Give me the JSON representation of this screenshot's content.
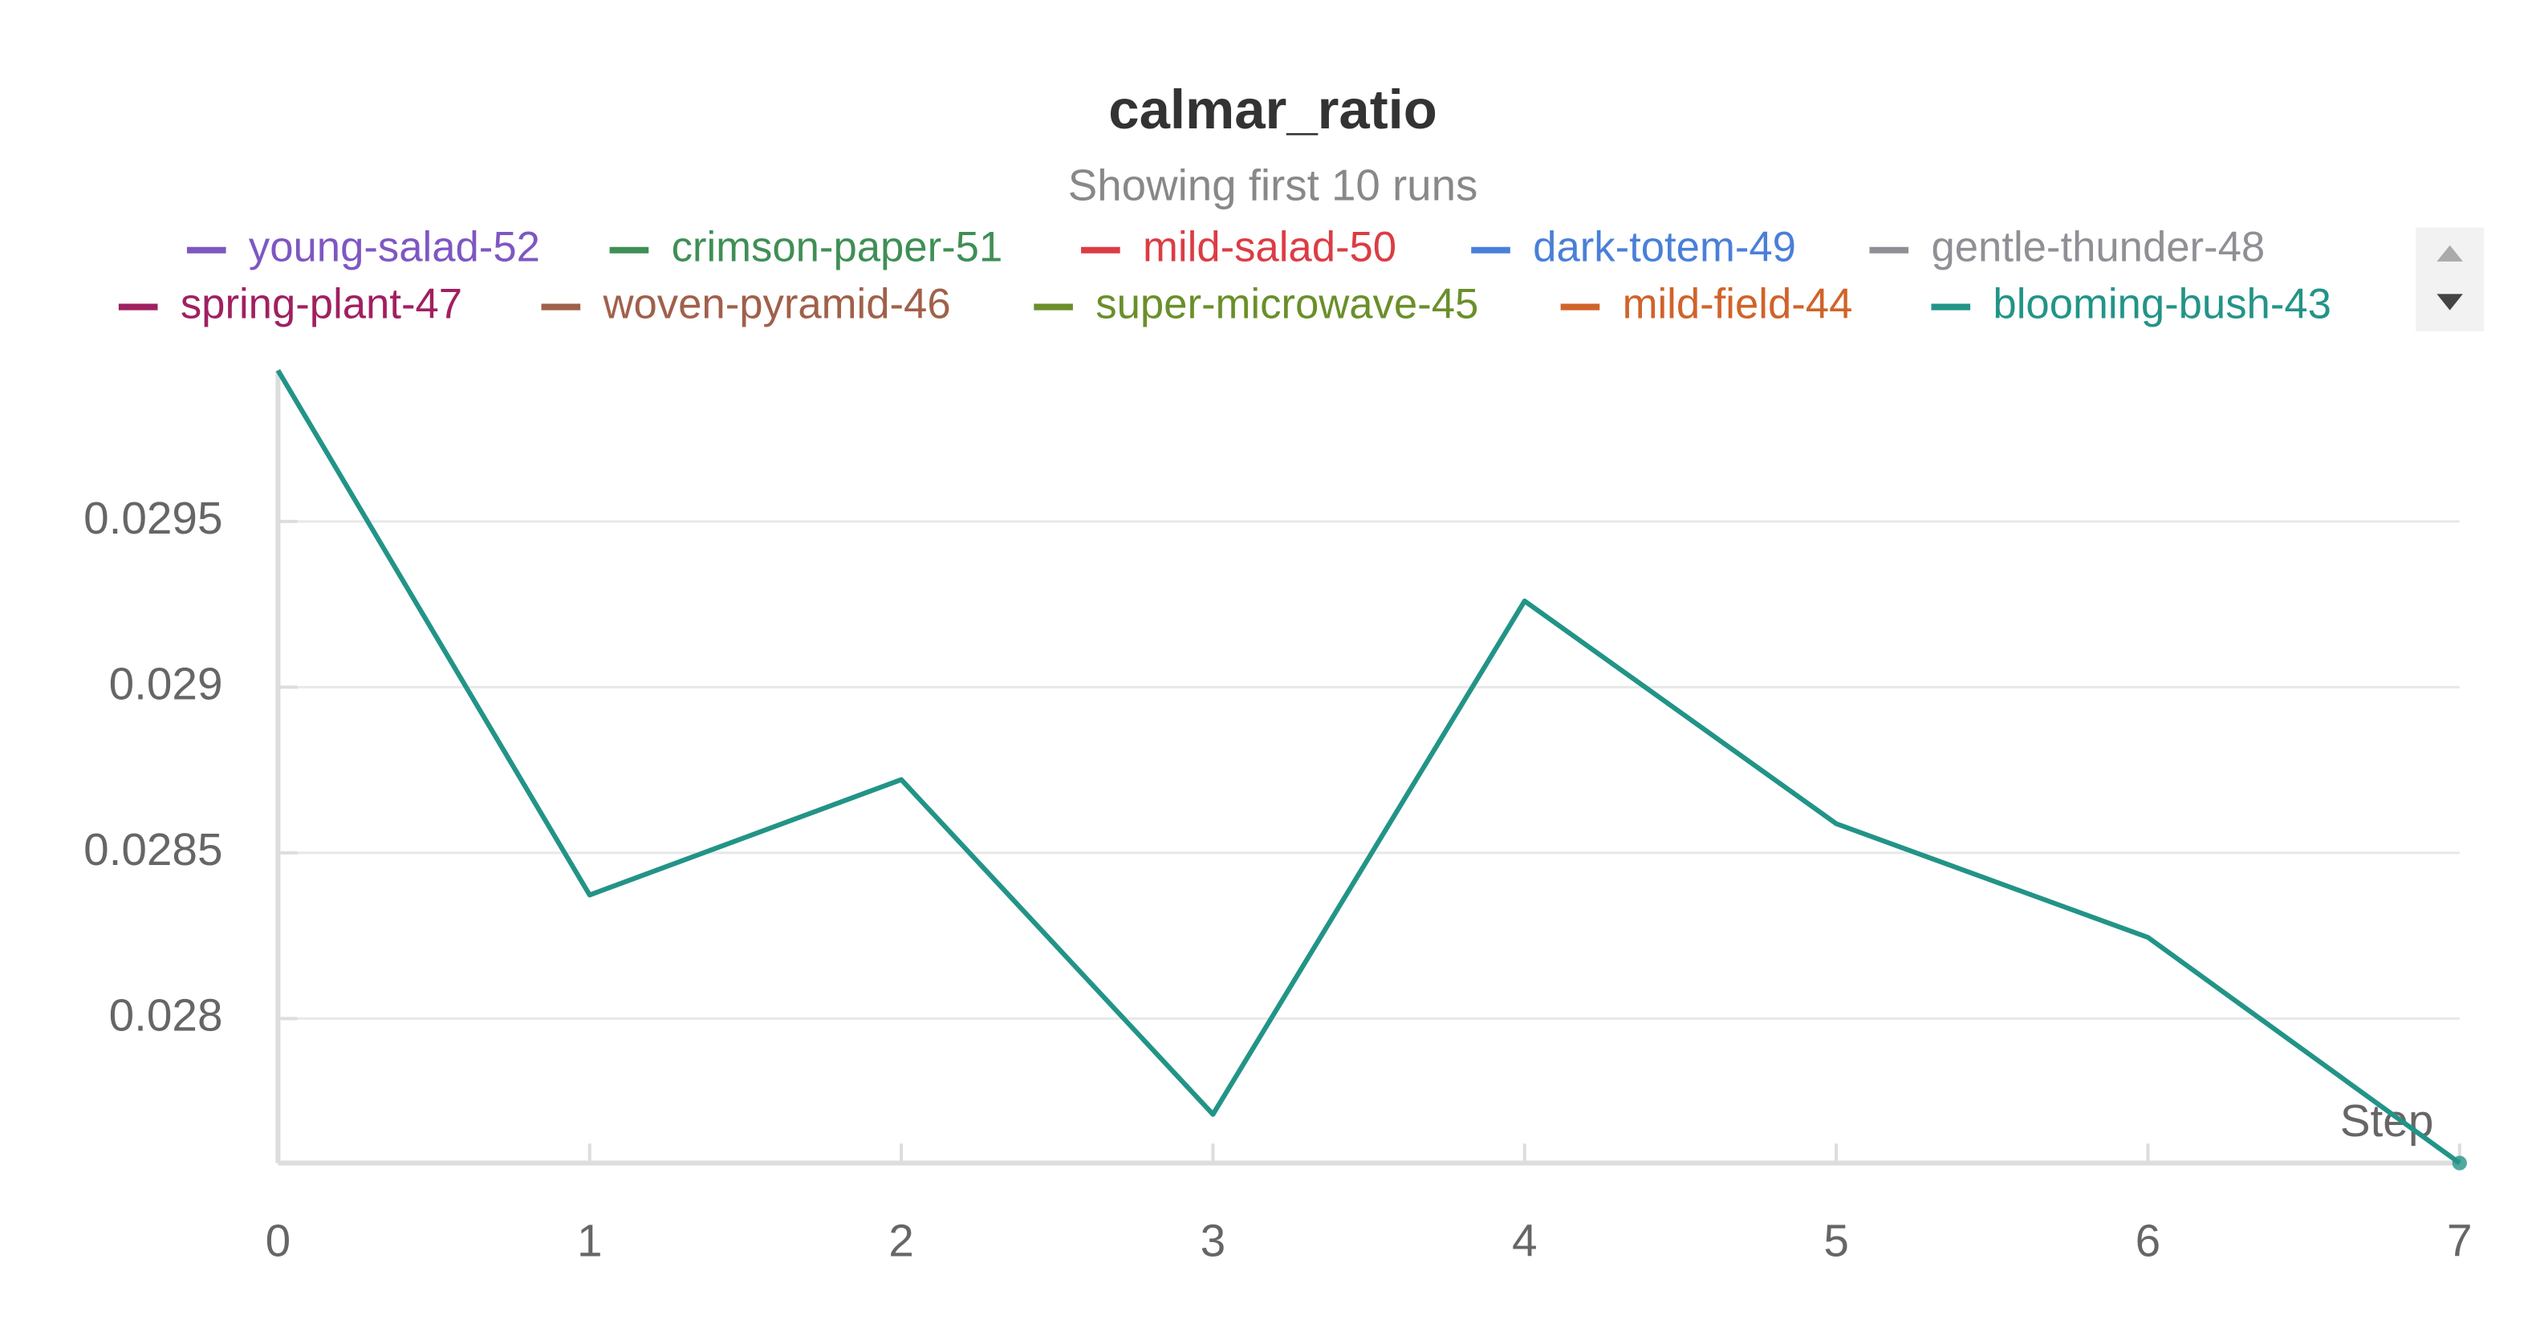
{
  "chart_data": {
    "type": "line",
    "title": "calmar_ratio",
    "subtitle": "Showing first 10 runs",
    "x_label": "Step",
    "x": [
      0,
      1,
      2,
      3,
      4,
      5,
      6,
      7
    ],
    "series": [
      {
        "name": "young-salad-52",
        "color": "#7e57c2"
      },
      {
        "name": "crimson-paper-51",
        "color": "#3f8f55"
      },
      {
        "name": "mild-salad-50",
        "color": "#dc3c44"
      },
      {
        "name": "dark-totem-49",
        "color": "#4a7fd9"
      },
      {
        "name": "gentle-thunder-48",
        "color": "#8f8f95"
      },
      {
        "name": "spring-plant-47",
        "color": "#a02060"
      },
      {
        "name": "woven-pyramid-46",
        "color": "#a0604a"
      },
      {
        "name": "super-microwave-45",
        "color": "#6a8f2a"
      },
      {
        "name": "mild-field-44",
        "color": "#d0632a"
      },
      {
        "name": "blooming-bush-43",
        "color": "#229487",
        "values": [
          0.029956,
          0.028373,
          0.028721,
          0.027711,
          0.02926,
          0.028588,
          0.028245,
          0.027564
        ]
      }
    ],
    "xlim": [
      0,
      7
    ],
    "xticks": [
      0,
      1,
      2,
      3,
      4,
      5,
      6,
      7
    ],
    "ylim": [
      0.027564,
      0.029956
    ],
    "yticks": [
      0.028,
      0.0285,
      0.029,
      0.0295
    ],
    "grid": true
  }
}
